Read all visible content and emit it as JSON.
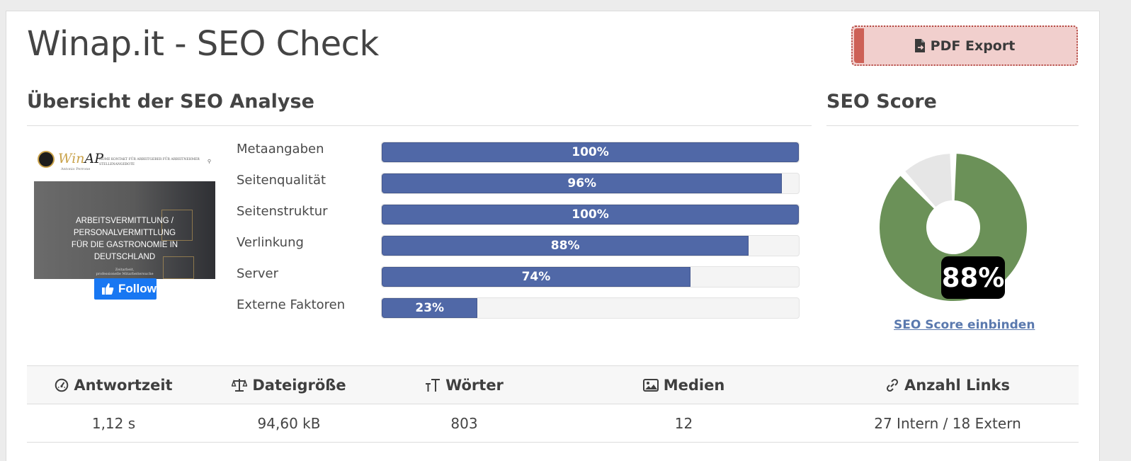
{
  "header": {
    "title": "Winap.it - SEO Check",
    "pdf_export_label": "PDF Export"
  },
  "overview": {
    "title": "Übersicht der SEO Analyse",
    "thumbnail": {
      "logo_win": "Win",
      "logo_ap": "AP",
      "logo_sub": "Antonio Perrone",
      "nav": "HOME   KONTAKT   FÜR ARBEITGEBER   FÜR ARBEITNEHMER   STELLENANGEBOTE",
      "hero_lines": [
        "ARBEITSVERMITTLUNG /",
        "PERSONALVERMITTLUNG",
        "FÜR DIE GASTRONOMIE IN",
        "DEUTSCHLAND"
      ],
      "hero_small": [
        "Zeitarbeit,",
        "professionelle Mitarbeitersuche"
      ]
    },
    "fb_follow_label": "Follow",
    "metrics": [
      {
        "label": "Metaangaben",
        "percent": 100,
        "value_label": "100%"
      },
      {
        "label": "Seitenqualität",
        "percent": 96,
        "value_label": "96%"
      },
      {
        "label": "Seitenstruktur",
        "percent": 100,
        "value_label": "100%"
      },
      {
        "label": "Verlinkung",
        "percent": 88,
        "value_label": "88%"
      },
      {
        "label": "Server",
        "percent": 74,
        "value_label": "74%"
      },
      {
        "label": "Externe Faktoren",
        "percent": 23,
        "value_label": "23%"
      }
    ]
  },
  "score": {
    "title": "SEO Score",
    "percent": 88,
    "value_label": "88%",
    "embed_link": "SEO Score einbinden",
    "colors": {
      "score": "#6b9158",
      "rest": "#e6e6e6"
    }
  },
  "stats": {
    "headers": [
      {
        "label": "Antwortzeit",
        "icon": "speedometer-icon"
      },
      {
        "label": "Dateigröße",
        "icon": "scale-icon"
      },
      {
        "label": "Wörter",
        "icon": "text-size-icon"
      },
      {
        "label": "Medien",
        "icon": "image-icon"
      },
      {
        "label": "Anzahl Links",
        "icon": "link-icon"
      }
    ],
    "values": [
      "1,12 s",
      "94,60 kB",
      "803",
      "12",
      "27 Intern / 18 Extern"
    ]
  },
  "colors": {
    "bar": "#5068a7",
    "pdf_button": "#f1cfcd",
    "pdf_accent": "#cd6157",
    "link": "#5a79ae"
  }
}
